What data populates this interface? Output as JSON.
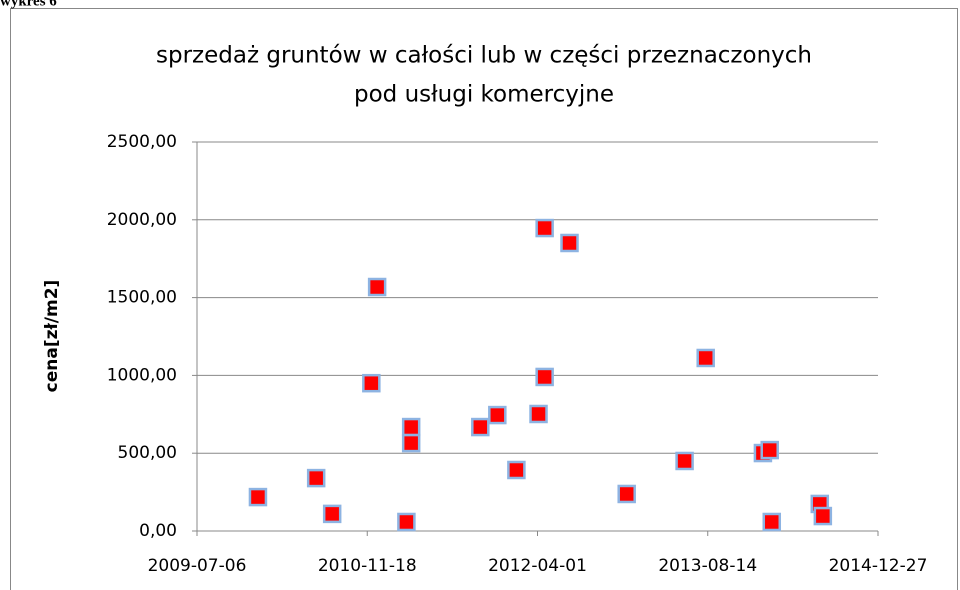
{
  "caption": "wykres 6",
  "chart_data": {
    "type": "scatter",
    "title": "sprzedaż gruntów w całości lub w części przeznaczonych pod usługi komercyjne",
    "y_label": "cena[zł/m2]",
    "x": [
      "2010-01-01",
      "2010-06-21",
      "2010-08-07",
      "2010-11-30",
      "2010-12-17",
      "2011-03-13",
      "2011-03-27",
      "2011-03-27",
      "2011-10-16",
      "2011-12-05",
      "2012-01-30",
      "2012-04-04",
      "2012-04-22",
      "2012-04-22",
      "2012-07-04",
      "2012-12-19",
      "2013-06-07",
      "2013-08-08",
      "2014-01-23",
      "2014-02-12",
      "2014-02-18",
      "2014-07-09",
      "2014-07-18"
    ],
    "values": [
      218,
      340,
      110,
      950,
      1568,
      58,
      668,
      565,
      668,
      745,
      392,
      752,
      1947,
      990,
      1851,
      238,
      450,
      1112,
      501,
      520,
      58,
      174,
      96
    ],
    "color": "#ff0000",
    "edge_color": "#8db3e2",
    "xlim": [
      "2009-07-06",
      "2014-12-27"
    ],
    "xticks": [
      "2009-07-06",
      "2010-11-18",
      "2012-04-01",
      "2013-08-14",
      "2014-12-27"
    ],
    "ylim": [
      0,
      2500
    ],
    "yticks": [
      {
        "value": 0,
        "label": "0,00"
      },
      {
        "value": 500,
        "label": "500,00"
      },
      {
        "value": 1000,
        "label": "1000,00"
      },
      {
        "value": 1500,
        "label": "1500,00"
      },
      {
        "value": 2000,
        "label": "2000,00"
      },
      {
        "value": 2500,
        "label": "2500,00"
      }
    ],
    "grid": true
  }
}
